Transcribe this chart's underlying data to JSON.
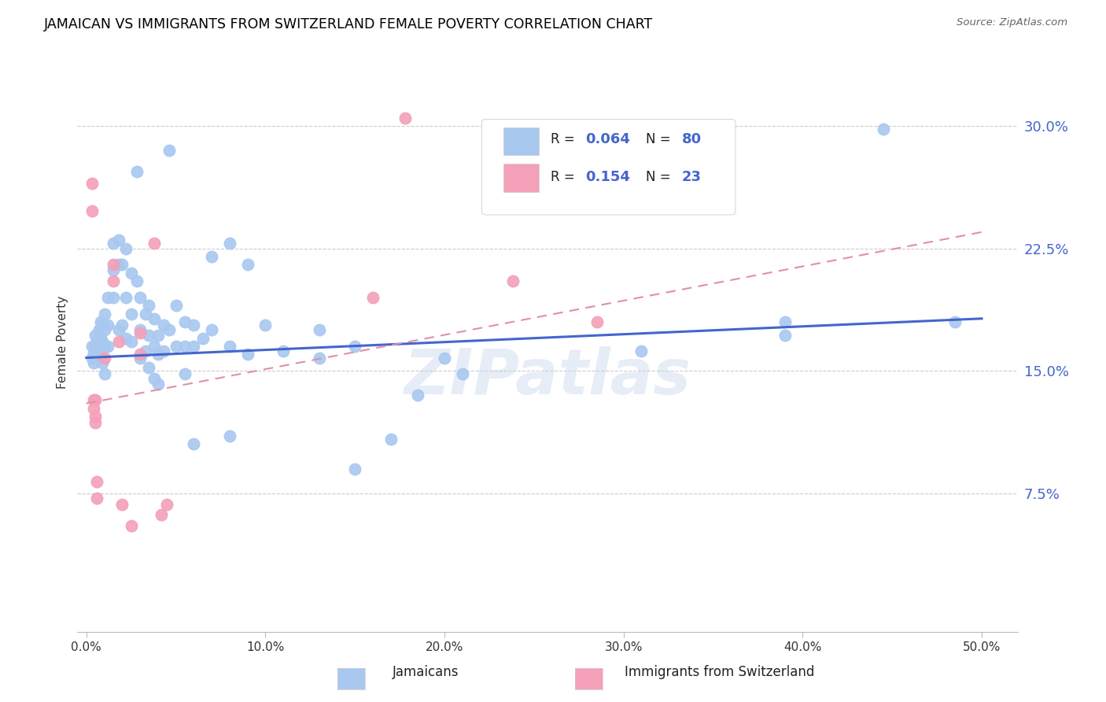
{
  "title": "JAMAICAN VS IMMIGRANTS FROM SWITZERLAND FEMALE POVERTY CORRELATION CHART",
  "source": "Source: ZipAtlas.com",
  "ylabel": "Female Poverty",
  "yticks": [
    "7.5%",
    "15.0%",
    "22.5%",
    "30.0%"
  ],
  "ytick_vals": [
    0.075,
    0.15,
    0.225,
    0.3
  ],
  "xrange": [
    -0.005,
    0.52
  ],
  "yrange": [
    -0.01,
    0.345
  ],
  "color_blue": "#A8C8F0",
  "color_pink": "#F4A0B8",
  "color_blue_text": "#3355BB",
  "color_line_blue": "#4466CC",
  "color_line_pink": "#E090A8",
  "watermark": "ZIPatlas",
  "blue_scatter": [
    [
      0.003,
      0.165
    ],
    [
      0.003,
      0.158
    ],
    [
      0.004,
      0.16
    ],
    [
      0.004,
      0.155
    ],
    [
      0.005,
      0.172
    ],
    [
      0.005,
      0.165
    ],
    [
      0.005,
      0.158
    ],
    [
      0.006,
      0.168
    ],
    [
      0.006,
      0.162
    ],
    [
      0.007,
      0.175
    ],
    [
      0.007,
      0.168
    ],
    [
      0.007,
      0.158
    ],
    [
      0.008,
      0.18
    ],
    [
      0.008,
      0.17
    ],
    [
      0.008,
      0.16
    ],
    [
      0.009,
      0.178
    ],
    [
      0.009,
      0.168
    ],
    [
      0.009,
      0.155
    ],
    [
      0.01,
      0.185
    ],
    [
      0.01,
      0.175
    ],
    [
      0.01,
      0.165
    ],
    [
      0.01,
      0.148
    ],
    [
      0.012,
      0.195
    ],
    [
      0.012,
      0.178
    ],
    [
      0.012,
      0.165
    ],
    [
      0.015,
      0.228
    ],
    [
      0.015,
      0.212
    ],
    [
      0.015,
      0.195
    ],
    [
      0.018,
      0.23
    ],
    [
      0.018,
      0.215
    ],
    [
      0.018,
      0.175
    ],
    [
      0.02,
      0.215
    ],
    [
      0.02,
      0.178
    ],
    [
      0.022,
      0.225
    ],
    [
      0.022,
      0.195
    ],
    [
      0.022,
      0.17
    ],
    [
      0.025,
      0.21
    ],
    [
      0.025,
      0.185
    ],
    [
      0.025,
      0.168
    ],
    [
      0.028,
      0.272
    ],
    [
      0.028,
      0.205
    ],
    [
      0.03,
      0.195
    ],
    [
      0.03,
      0.175
    ],
    [
      0.03,
      0.158
    ],
    [
      0.033,
      0.185
    ],
    [
      0.033,
      0.162
    ],
    [
      0.035,
      0.19
    ],
    [
      0.035,
      0.172
    ],
    [
      0.035,
      0.152
    ],
    [
      0.038,
      0.182
    ],
    [
      0.038,
      0.165
    ],
    [
      0.038,
      0.145
    ],
    [
      0.04,
      0.172
    ],
    [
      0.04,
      0.16
    ],
    [
      0.04,
      0.142
    ],
    [
      0.043,
      0.178
    ],
    [
      0.043,
      0.162
    ],
    [
      0.046,
      0.285
    ],
    [
      0.046,
      0.175
    ],
    [
      0.05,
      0.19
    ],
    [
      0.05,
      0.165
    ],
    [
      0.055,
      0.18
    ],
    [
      0.055,
      0.165
    ],
    [
      0.055,
      0.148
    ],
    [
      0.06,
      0.178
    ],
    [
      0.06,
      0.165
    ],
    [
      0.06,
      0.105
    ],
    [
      0.065,
      0.17
    ],
    [
      0.07,
      0.22
    ],
    [
      0.07,
      0.175
    ],
    [
      0.08,
      0.228
    ],
    [
      0.08,
      0.165
    ],
    [
      0.08,
      0.11
    ],
    [
      0.09,
      0.215
    ],
    [
      0.09,
      0.16
    ],
    [
      0.1,
      0.178
    ],
    [
      0.11,
      0.162
    ],
    [
      0.13,
      0.175
    ],
    [
      0.13,
      0.158
    ],
    [
      0.15,
      0.165
    ],
    [
      0.15,
      0.09
    ],
    [
      0.17,
      0.108
    ],
    [
      0.185,
      0.135
    ],
    [
      0.2,
      0.158
    ],
    [
      0.21,
      0.148
    ],
    [
      0.31,
      0.255
    ],
    [
      0.31,
      0.162
    ],
    [
      0.39,
      0.18
    ],
    [
      0.39,
      0.172
    ],
    [
      0.445,
      0.298
    ],
    [
      0.485,
      0.18
    ]
  ],
  "pink_scatter": [
    [
      0.003,
      0.265
    ],
    [
      0.003,
      0.248
    ],
    [
      0.004,
      0.132
    ],
    [
      0.004,
      0.127
    ],
    [
      0.005,
      0.132
    ],
    [
      0.005,
      0.122
    ],
    [
      0.005,
      0.118
    ],
    [
      0.006,
      0.082
    ],
    [
      0.006,
      0.072
    ],
    [
      0.01,
      0.158
    ],
    [
      0.015,
      0.215
    ],
    [
      0.015,
      0.205
    ],
    [
      0.018,
      0.168
    ],
    [
      0.02,
      0.068
    ],
    [
      0.025,
      0.055
    ],
    [
      0.03,
      0.173
    ],
    [
      0.03,
      0.16
    ],
    [
      0.038,
      0.228
    ],
    [
      0.042,
      0.062
    ],
    [
      0.045,
      0.068
    ],
    [
      0.16,
      0.195
    ],
    [
      0.178,
      0.305
    ],
    [
      0.238,
      0.205
    ],
    [
      0.285,
      0.18
    ]
  ],
  "blue_line_x": [
    0.0,
    0.5
  ],
  "blue_line_y": [
    0.158,
    0.182
  ],
  "pink_line_x": [
    0.0,
    0.5
  ],
  "pink_line_y": [
    0.13,
    0.235
  ],
  "grid_color": "#CCCCCC",
  "background_color": "#FFFFFF",
  "xtick_vals": [
    0.0,
    0.1,
    0.2,
    0.3,
    0.4,
    0.5
  ],
  "xtick_labels": [
    "0.0%",
    "10.0%",
    "20.0%",
    "30.0%",
    "40.0%",
    "50.0%"
  ]
}
